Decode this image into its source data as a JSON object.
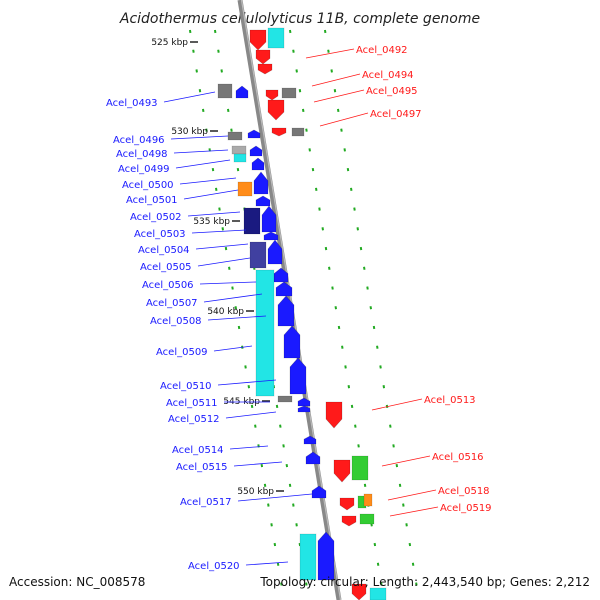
{
  "title": "Acidothermus cellulolyticus 11B, complete genome",
  "accession": "Accession: NC_008578",
  "topology": "Topology: circular; Length: 2,443,540 bp; Genes: 2,212",
  "colors": {
    "forward": "#1a1aff",
    "reverse": "#ff1a1a",
    "cyan": "#22e5e5",
    "grey": "#777777",
    "navy": "#1a1a80",
    "orange": "#ff8c1a",
    "green": "#33cc33",
    "tick_green": "#22aa22"
  },
  "kbp_marks": [
    "525 kbp",
    "530 kbp",
    "535 kbp",
    "540 kbp",
    "545 kbp",
    "550 kbp"
  ],
  "left_genes": [
    "Acel_0493",
    "Acel_0496",
    "Acel_0498",
    "Acel_0499",
    "Acel_0500",
    "Acel_0501",
    "Acel_0502",
    "Acel_0503",
    "Acel_0504",
    "Acel_0505",
    "Acel_0506",
    "Acel_0507",
    "Acel_0508",
    "Acel_0509",
    "Acel_0510",
    "Acel_0511",
    "Acel_0512",
    "Acel_0514",
    "Acel_0515",
    "Acel_0517",
    "Acel_0520"
  ],
  "right_genes": [
    "Acel_0492",
    "Acel_0494",
    "Acel_0495",
    "Acel_0497",
    "Acel_0513",
    "Acel_0516",
    "Acel_0518",
    "Acel_0519"
  ]
}
